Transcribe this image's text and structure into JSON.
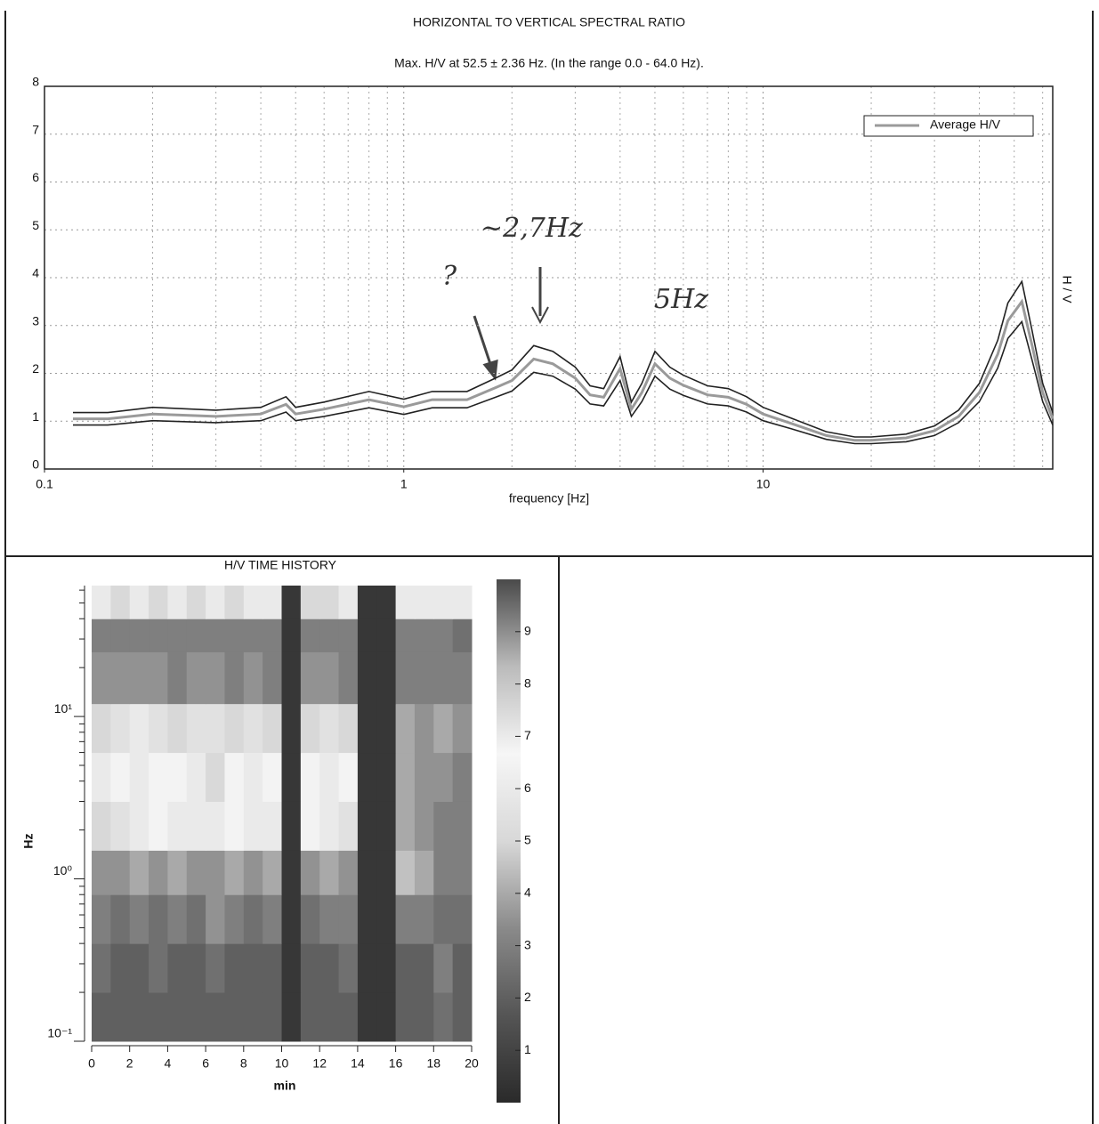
{
  "chart_data": [
    {
      "type": "line",
      "title": "HORIZONTAL TO VERTICAL SPECTRAL RATIO",
      "subtitle": "Max. H/V at 52.5 ± 2.36 Hz. (In the range 0.0 - 64.0 Hz).",
      "x_label": "frequency [Hz]",
      "y_label": "H / V",
      "log_x": true,
      "grid": true,
      "legend": "top-right",
      "annotations": [
        "~2,7Hz",
        "?",
        "5Hz"
      ],
      "x": [
        0.12,
        0.15,
        0.2,
        0.3,
        0.4,
        0.47,
        0.5,
        0.6,
        0.8,
        1.0,
        1.2,
        1.5,
        1.8,
        2.0,
        2.3,
        2.6,
        3.0,
        3.3,
        3.6,
        4.0,
        4.3,
        4.6,
        5.0,
        5.5,
        6.0,
        7.0,
        8.0,
        9.0,
        10,
        12,
        15,
        18,
        20,
        25,
        30,
        35,
        40,
        45,
        48,
        52.5,
        56,
        60,
        64
      ],
      "series": [
        {
          "name": "Average H/V",
          "color": "#9a9a9a",
          "values": [
            1.05,
            1.05,
            1.15,
            1.1,
            1.15,
            1.35,
            1.15,
            1.25,
            1.45,
            1.3,
            1.45,
            1.45,
            1.7,
            1.85,
            2.3,
            2.2,
            1.9,
            1.55,
            1.5,
            2.1,
            1.25,
            1.6,
            2.2,
            1.9,
            1.75,
            1.55,
            1.5,
            1.35,
            1.15,
            0.95,
            0.7,
            0.6,
            0.6,
            0.65,
            0.8,
            1.1,
            1.6,
            2.4,
            3.1,
            3.5,
            2.6,
            1.6,
            1.05
          ]
        },
        {
          "color": "#222222",
          "values": [
            1.18,
            1.18,
            1.29,
            1.23,
            1.29,
            1.51,
            1.29,
            1.4,
            1.62,
            1.46,
            1.62,
            1.62,
            1.9,
            2.07,
            2.58,
            2.46,
            2.13,
            1.74,
            1.68,
            2.35,
            1.4,
            1.79,
            2.46,
            2.13,
            1.96,
            1.74,
            1.68,
            1.51,
            1.29,
            1.06,
            0.78,
            0.67,
            0.67,
            0.73,
            0.9,
            1.23,
            1.79,
            2.69,
            3.47,
            3.92,
            2.91,
            1.79,
            1.18
          ]
        },
        {
          "color": "#222222",
          "values": [
            0.92,
            0.92,
            1.01,
            0.97,
            1.01,
            1.19,
            1.01,
            1.1,
            1.28,
            1.14,
            1.28,
            1.28,
            1.5,
            1.63,
            2.02,
            1.94,
            1.67,
            1.36,
            1.32,
            1.85,
            1.1,
            1.41,
            1.94,
            1.67,
            1.54,
            1.36,
            1.32,
            1.19,
            1.01,
            0.84,
            0.62,
            0.53,
            0.53,
            0.57,
            0.7,
            0.97,
            1.41,
            2.11,
            2.73,
            3.08,
            2.29,
            1.41,
            0.92
          ]
        }
      ],
      "xlim": [
        0.1,
        64
      ],
      "xticks": [
        0.1,
        1,
        10
      ],
      "ylim": [
        0,
        8
      ],
      "yticks": [
        0,
        1,
        2,
        3,
        4,
        5,
        6,
        7,
        8
      ]
    },
    {
      "type": "heatmap",
      "title": "H/V TIME HISTORY",
      "x_label": "min",
      "y_label": "Hz",
      "log_y": true,
      "x_edges": [
        0,
        1,
        2,
        3,
        4,
        5,
        6,
        7,
        8,
        9,
        10,
        11,
        12,
        13,
        14,
        15,
        16,
        17,
        18,
        19,
        20
      ],
      "y_edges": [
        0.1,
        0.2,
        0.4,
        0.8,
        1.5,
        3,
        6,
        12,
        25,
        40,
        64
      ],
      "z": [
        [
          2,
          2,
          2,
          2,
          2,
          2,
          2,
          2,
          2,
          2,
          0.5,
          2,
          2,
          2,
          0.5,
          0.5,
          2,
          2,
          2.5,
          2
        ],
        [
          2.5,
          2,
          2,
          2.5,
          2,
          2,
          2.5,
          2,
          2,
          2,
          0.5,
          2,
          2,
          2.5,
          0.5,
          0.5,
          2,
          2,
          3,
          2
        ],
        [
          3,
          2.5,
          3,
          2.5,
          3,
          2.5,
          3.5,
          3,
          2.5,
          3,
          0.5,
          2.5,
          3,
          3,
          0.5,
          0.5,
          3,
          3,
          2.5,
          2.5
        ],
        [
          3.5,
          3.5,
          4,
          3.5,
          4,
          3.5,
          3.5,
          4,
          3.5,
          4,
          0.5,
          3.5,
          4,
          3.5,
          0.5,
          0.5,
          4.5,
          4,
          3,
          3
        ],
        [
          5,
          5.5,
          6,
          6.5,
          7,
          6,
          6,
          6.5,
          6,
          6,
          0.5,
          6.5,
          6,
          5.5,
          0.5,
          0.5,
          4,
          3.5,
          3,
          3
        ],
        [
          6,
          6.5,
          7,
          6.5,
          6.5,
          7,
          7.5,
          6.5,
          7,
          6.5,
          0.5,
          6.5,
          7,
          6.5,
          0.5,
          0.5,
          4,
          3.5,
          3.5,
          3
        ],
        [
          5,
          5.5,
          6,
          5.5,
          5,
          5.5,
          5.5,
          5,
          5.5,
          5,
          0.5,
          5,
          5.5,
          5,
          0.5,
          0.5,
          4,
          3.5,
          4,
          3.5
        ],
        [
          3.5,
          3.5,
          3.5,
          3.5,
          3,
          3.5,
          3.5,
          3,
          3.5,
          3,
          0.5,
          3.5,
          3.5,
          3,
          0.5,
          0.5,
          3,
          3,
          3,
          3
        ],
        [
          3,
          3,
          3,
          3,
          3,
          3,
          3,
          3,
          3,
          3,
          0.5,
          3,
          3,
          3,
          0.5,
          0.5,
          3,
          3,
          3,
          2.5
        ],
        [
          7,
          7.5,
          7,
          7.5,
          7,
          7.5,
          7,
          7.5,
          7,
          7,
          0.5,
          7.5,
          7.5,
          7,
          0.5,
          0.5,
          7,
          7,
          7,
          7
        ]
      ],
      "xlim": [
        0,
        20
      ],
      "xticks": [
        0,
        2,
        4,
        6,
        8,
        10,
        12,
        14,
        16,
        18,
        20
      ],
      "ylim": [
        0.1,
        64
      ],
      "yticks": [
        {
          "value": 0.1,
          "label": "10⁻¹"
        },
        {
          "value": 1,
          "label": "10⁰"
        },
        {
          "value": 10,
          "label": "10¹"
        }
      ],
      "colormap": [
        "#2a2a2a",
        "#555555",
        "#8a8a8a",
        "#d8d8d8",
        "#f6f6f6",
        "#bbbbbb",
        "#4a4a4a"
      ],
      "clim": [
        0,
        10
      ],
      "cticks": [
        1,
        2,
        3,
        4,
        5,
        6,
        7,
        8,
        9
      ]
    }
  ]
}
